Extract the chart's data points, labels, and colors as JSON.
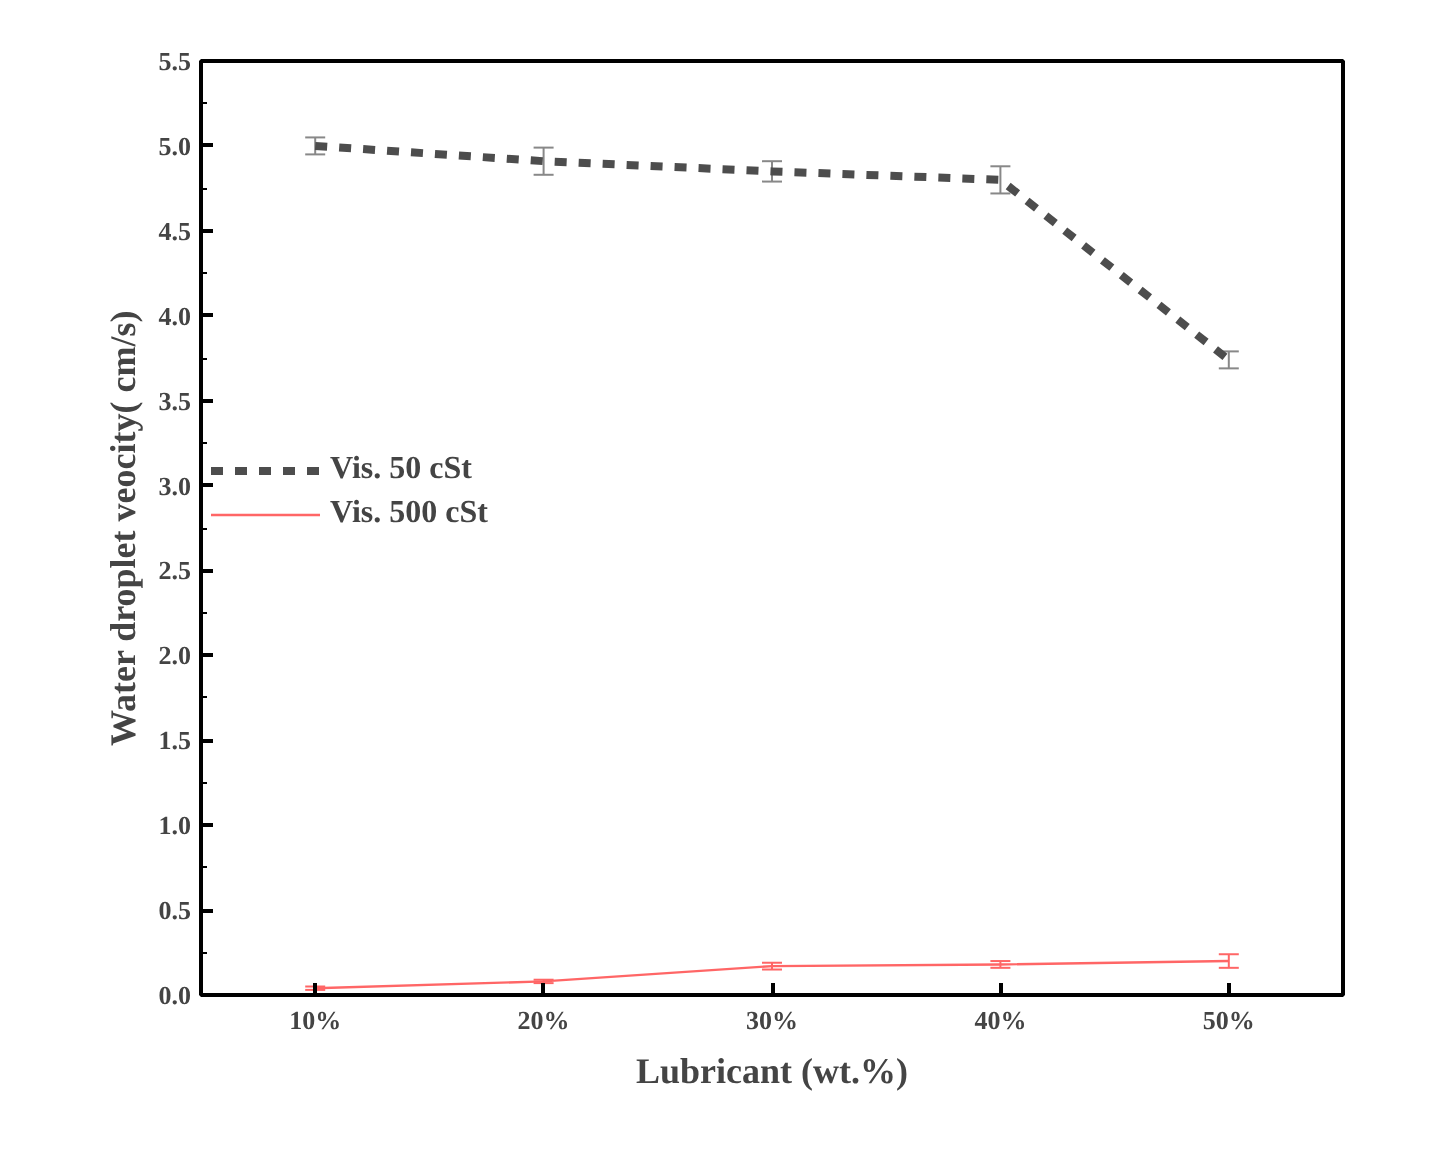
{
  "chart_data": {
    "type": "line",
    "xlabel": "Lubricant (wt.%)",
    "ylabel": "Water droplet veocity( cm/s)",
    "categories": [
      "10%",
      "20%",
      "30%",
      "40%",
      "50%"
    ],
    "series": [
      {
        "name": "Vis. 50 cSt",
        "color": "#4d4d4d",
        "line_style": "dashed",
        "values": [
          5.0,
          4.91,
          4.85,
          4.8,
          3.74
        ],
        "errors": [
          0.05,
          0.08,
          0.06,
          0.08,
          0.05
        ]
      },
      {
        "name": "Vis. 500 cSt",
        "color": "#ff6666",
        "line_style": "solid",
        "values": [
          0.04,
          0.08,
          0.17,
          0.18,
          0.2
        ],
        "errors": [
          0.01,
          0.01,
          0.02,
          0.02,
          0.04
        ]
      }
    ],
    "ylim": [
      0,
      5.5
    ],
    "yticks": [
      {
        "value": 0,
        "label": "0.0"
      },
      {
        "value": 0.5,
        "label": "0.5"
      },
      {
        "value": 1,
        "label": "1.0"
      },
      {
        "value": 1.5,
        "label": "1.5"
      },
      {
        "value": 2,
        "label": "2.0"
      },
      {
        "value": 2.5,
        "label": "2.5"
      },
      {
        "value": 3,
        "label": "3.0"
      },
      {
        "value": 3.5,
        "label": "3.5"
      },
      {
        "value": 4,
        "label": "4.0"
      },
      {
        "value": 4.5,
        "label": "4.5"
      },
      {
        "value": 5,
        "label": "5.0"
      },
      {
        "value": 5.5,
        "label": "5.5"
      }
    ],
    "grid": false,
    "legend": "left",
    "marker": "none"
  }
}
